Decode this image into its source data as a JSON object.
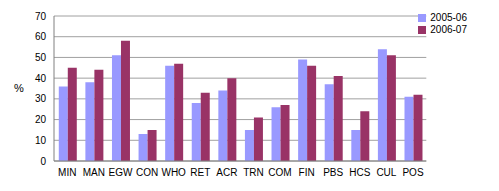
{
  "chart_data": {
    "type": "bar",
    "y_label": "%",
    "categories": [
      "MIN",
      "MAN",
      "EGW",
      "CON",
      "WHO",
      "RET",
      "ACR",
      "TRN",
      "COM",
      "FIN",
      "PBS",
      "HCS",
      "CUL",
      "POS"
    ],
    "series": [
      {
        "name": "2005-06",
        "color": "#9999ff",
        "values": [
          36,
          38,
          51,
          13,
          46,
          28,
          34,
          15,
          26,
          49,
          37,
          15,
          54,
          31
        ]
      },
      {
        "name": "2006-07",
        "color": "#993366",
        "values": [
          45,
          44,
          58,
          15,
          47,
          33,
          40,
          21,
          27,
          46,
          41,
          24,
          51,
          32
        ]
      }
    ],
    "ylim": [
      0,
      70
    ],
    "yticks": [
      0,
      10,
      20,
      30,
      40,
      50,
      60,
      70
    ],
    "grid": true,
    "legend": "top-right"
  }
}
